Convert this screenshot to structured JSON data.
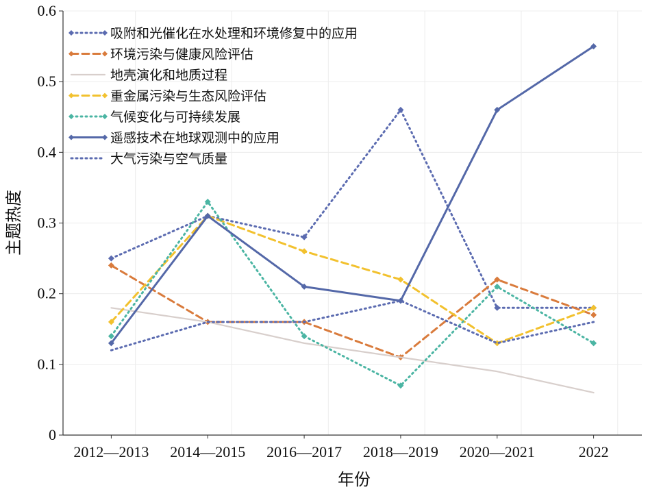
{
  "chart_data": {
    "type": "line",
    "title": "",
    "xlabel": "年份",
    "ylabel": "主题热度",
    "categories": [
      "2012—2013",
      "2014—2015",
      "2016—2017",
      "2018—2019",
      "2020—2021",
      "2022"
    ],
    "ylim": [
      0,
      0.6
    ],
    "yticks": [
      "0",
      "0.1",
      "0.2",
      "0.3",
      "0.4",
      "0.5",
      "0.6"
    ],
    "grid": true,
    "legend_position": "top-left",
    "series": [
      {
        "name": "吸附和光催化在水处理和环境修复中的应用",
        "color": "#5b6bb0",
        "style": "dotted",
        "marker": "diamond",
        "x": [
          2012.5,
          2014.5,
          2016.5,
          2018.5,
          2020.5,
          2022.5
        ],
        "values": [
          0.25,
          0.31,
          0.28,
          0.46,
          0.18,
          0.18
        ]
      },
      {
        "name": "环境污染与健康风险评估",
        "color": "#d97b3c",
        "style": "dashed",
        "marker": "diamond",
        "x": [
          2012.5,
          2014.5,
          2016.5,
          2018.5,
          2020.5,
          2022.5
        ],
        "values": [
          0.24,
          0.16,
          0.16,
          0.11,
          0.22,
          0.17
        ]
      },
      {
        "name": "地壳演化和地质过程",
        "color": "#d8cfcc",
        "style": "solid",
        "marker": "none",
        "x": [
          2012.5,
          2014.5,
          2016.5,
          2018.5,
          2020.5,
          2022.5
        ],
        "values": [
          0.18,
          0.16,
          0.13,
          0.11,
          0.09,
          0.06
        ]
      },
      {
        "name": "重金属污染与生态风险评估",
        "color": "#f2c12e",
        "style": "dashed",
        "marker": "diamond",
        "x": [
          2012.5,
          2014.5,
          2016.5,
          2018.5,
          2020.5,
          2022.5
        ],
        "values": [
          0.16,
          0.31,
          0.26,
          0.22,
          0.13,
          0.18
        ]
      },
      {
        "name": "气候变化与可持续发展",
        "color": "#4bb5a3",
        "style": "dotted",
        "marker": "diamond",
        "x": [
          2012.5,
          2014.5,
          2016.5,
          2018.5,
          2020.5,
          2022.5
        ],
        "values": [
          0.14,
          0.33,
          0.14,
          0.07,
          0.21,
          0.13
        ]
      },
      {
        "name": "遥感技术在地球观测中的应用",
        "color": "#5468a8",
        "style": "solid",
        "marker": "diamond",
        "x": [
          2012.5,
          2014.5,
          2016.5,
          2018.5,
          2020.5,
          2022.5
        ],
        "values": [
          0.13,
          0.31,
          0.21,
          0.19,
          0.46,
          0.55
        ]
      },
      {
        "name": "大气污染与空气质量",
        "color": "#5b6bb0",
        "style": "dotted",
        "marker": "none",
        "x": [
          2012.5,
          2014.5,
          2016.5,
          2018.5,
          2020.5,
          2022.5
        ],
        "values": [
          0.12,
          0.16,
          0.16,
          0.19,
          0.13,
          0.16
        ]
      }
    ]
  }
}
